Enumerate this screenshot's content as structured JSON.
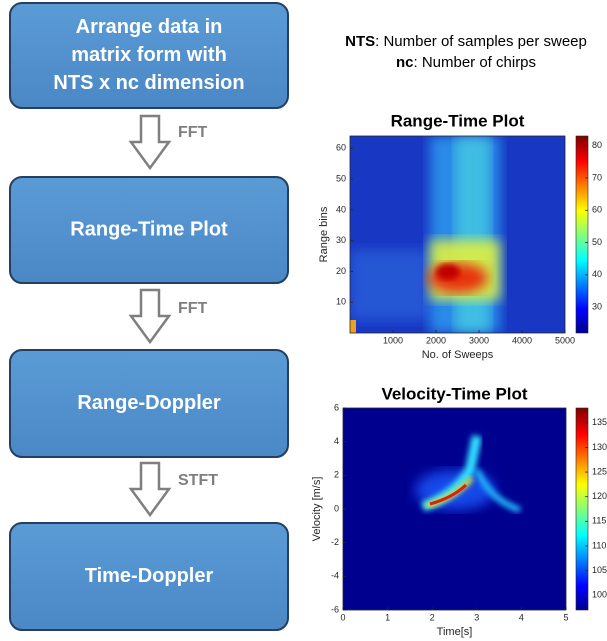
{
  "nodes": [
    {
      "lines": [
        "Arrange data in",
        "matrix form with",
        "NTS x nc dimension"
      ]
    },
    {
      "lines": [
        "Range-Time Plot"
      ]
    },
    {
      "lines": [
        "Range-Doppler"
      ]
    },
    {
      "lines": [
        "Time-Doppler"
      ]
    }
  ],
  "arrows": [
    {
      "label": "FFT"
    },
    {
      "label": "FFT"
    },
    {
      "label": "STFT"
    }
  ],
  "legend": [
    {
      "term": "NTS",
      "definition": ": Number of samples per sweep"
    },
    {
      "term": "nc",
      "definition": ": Number of chirps"
    }
  ],
  "plots": [
    {
      "title": "Range-Time Plot",
      "xlabel": "No. of Sweeps",
      "ylabel": "Range bins",
      "xlim": [
        0,
        5000
      ],
      "xticks": [
        1000,
        2000,
        3000,
        4000,
        5000
      ],
      "ylim": [
        0,
        64
      ],
      "yticks": [
        10,
        20,
        30,
        40,
        50,
        60
      ],
      "clim": [
        22,
        83
      ],
      "cticks": [
        30,
        40,
        50,
        60,
        70,
        80
      ]
    },
    {
      "title": "Velocity-Time Plot",
      "xlabel": "Time[s]",
      "ylabel": "Velocity [m/s]",
      "xlim": [
        0,
        5
      ],
      "xticks": [
        0,
        1,
        2,
        3,
        4,
        5
      ],
      "ylim": [
        -6,
        6
      ],
      "yticks": [
        -6,
        -4,
        -2,
        0,
        2,
        4,
        6
      ],
      "clim": [
        97,
        138
      ],
      "cticks": [
        100,
        105,
        110,
        115,
        120,
        125,
        130,
        135
      ]
    }
  ]
}
